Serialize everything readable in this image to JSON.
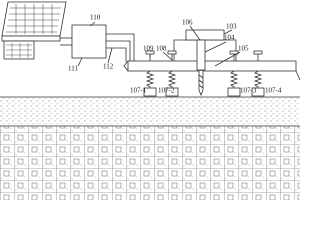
{
  "labels": {
    "main_unit": "110",
    "cable_left": "111",
    "cable_right": "112",
    "frame": "103",
    "probe": "106",
    "arm": "104",
    "spring_a": "109",
    "spring_b": "108",
    "plate": "105",
    "foot_1": "107-1",
    "foot_2": "107-2",
    "foot_3": "107-3",
    "foot_4": "107-4"
  }
}
